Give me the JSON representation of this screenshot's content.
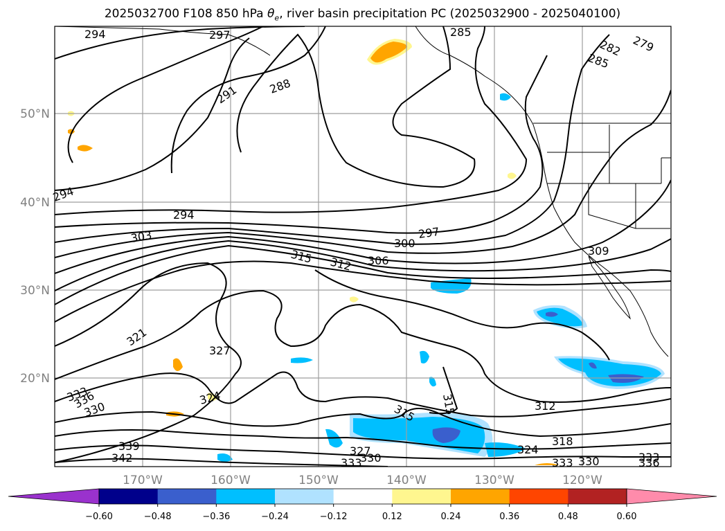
{
  "title": {
    "prefix": "2025032700 F108 850 hPa ",
    "theta": "θ",
    "theta_sub": "e",
    "suffix": ", river basin precipitation PC (2025032900 - 2025040100)"
  },
  "chart_data": {
    "type": "map-contour",
    "variable": "850 hPa theta-e with river basin precipitation PC shading",
    "lat_ticks": [
      "50°N",
      "40°N",
      "30°N",
      "20°N"
    ],
    "lon_ticks": [
      "170°W",
      "160°W",
      "150°W",
      "140°W",
      "130°W",
      "120°W"
    ],
    "lat_values": [
      50,
      40,
      30,
      20
    ],
    "lon_values": [
      -170,
      -160,
      -150,
      -140,
      -130,
      -120
    ],
    "extent": {
      "lon": [
        -180,
        -110
      ],
      "lat": [
        10,
        60
      ]
    },
    "colorbar": {
      "levels": [
        -0.6,
        -0.48,
        -0.36,
        -0.24,
        -0.12,
        0.12,
        0.24,
        0.36,
        0.48,
        0.6
      ],
      "tick_labels": [
        "−0.60",
        "−0.48",
        "−0.36",
        "−0.24",
        "−0.12",
        "0.12",
        "0.24",
        "0.36",
        "0.48",
        "0.60"
      ],
      "colors": [
        "#9a32cd",
        "#00008b",
        "#3a5fcd",
        "#00bfff",
        "#b0e2ff",
        "#ffffff",
        "#fff68f",
        "#ffa500",
        "#ff4500",
        "#b22222",
        "#ff8bab"
      ],
      "extend": "both"
    },
    "contour_labels": [
      "294",
      "297",
      "285",
      "282",
      "279",
      "285",
      "291",
      "288",
      "294",
      "294",
      "297",
      "300",
      "303",
      "306",
      "309",
      "312",
      "315",
      "321",
      "327",
      "324",
      "333",
      "330",
      "336",
      "339",
      "342",
      "327",
      "333",
      "330",
      "315",
      "312",
      "315",
      "318",
      "324",
      "333",
      "330",
      "333",
      "336"
    ],
    "grid": true
  }
}
